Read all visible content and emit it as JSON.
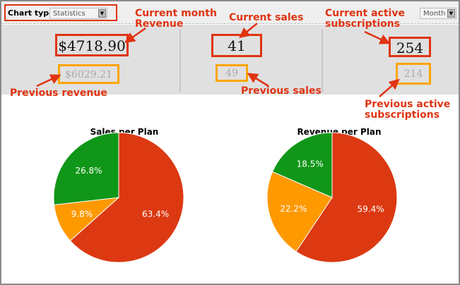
{
  "toolbar": {
    "chart_type_label": "Chart type",
    "chart_type_value": "Statistics",
    "period_value": "Month"
  },
  "stats": {
    "current_revenue": "$4718.90",
    "previous_revenue": "$6029.21",
    "current_sales": "41",
    "previous_sales": "49",
    "current_active": "254",
    "previous_active": "214"
  },
  "annotations": {
    "current_revenue": "Current month\nRevenue",
    "previous_revenue": "Previous revenue",
    "current_sales": "Current sales",
    "previous_sales": "Previous sales",
    "current_active": "Current active\nsubscriptions",
    "previous_active": "Previous active\nsubscriptions"
  },
  "colors": {
    "annotation": "#e03412",
    "previous": "#ffa500",
    "red": "#dc3912",
    "orange": "#ff9900",
    "green": "#109618"
  },
  "chart_data": [
    {
      "type": "pie",
      "title": "Sales per Plan",
      "slices": [
        {
          "value": 63.4,
          "label": "63.4%",
          "color": "#dc3912"
        },
        {
          "value": 9.8,
          "label": "9.8%",
          "color": "#ff9900"
        },
        {
          "value": 26.8,
          "label": "26.8%",
          "color": "#109618"
        }
      ]
    },
    {
      "type": "pie",
      "title": "Revenue per Plan",
      "slices": [
        {
          "value": 59.4,
          "label": "59.4%",
          "color": "#dc3912"
        },
        {
          "value": 22.2,
          "label": "22.2%",
          "color": "#ff9900"
        },
        {
          "value": 18.5,
          "label": "18.5%",
          "color": "#109618"
        }
      ]
    }
  ]
}
